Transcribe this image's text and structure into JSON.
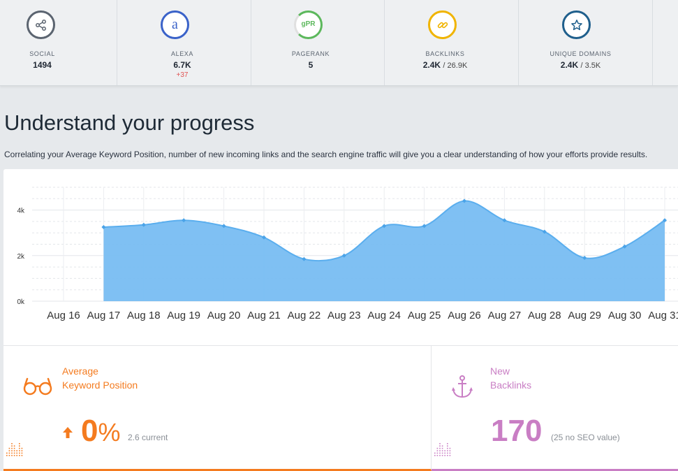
{
  "metrics": [
    {
      "label": "SOCIAL",
      "value": "1494",
      "icon": "share-icon",
      "color": "#5b6470"
    },
    {
      "label": "ALEXA",
      "value": "6.7K",
      "delta": "+37",
      "icon": "alexa-icon",
      "color": "#3a62c9"
    },
    {
      "label": "PAGERANK",
      "value": "5",
      "icon": "pagerank-icon",
      "color": "#5cb85c",
      "badge": "gPR"
    },
    {
      "label": "BACKLINKS",
      "value": "2.4K",
      "sub": "/ 26.9K",
      "icon": "link-icon",
      "color": "#f0b400"
    },
    {
      "label": "UNIQUE DOMAINS",
      "value": "2.4K",
      "sub": "/ 3.5K",
      "icon": "star-icon",
      "color": "#1f5f8c"
    }
  ],
  "alexa_letter": "a",
  "section": {
    "title": "Understand your progress",
    "description": "Correlating your Average Keyword Position, number of new incoming links and the search engine traffic will give you a clear understanding of how your efforts provide results."
  },
  "chart_data": {
    "type": "area",
    "x": [
      "Aug 16",
      "Aug 17",
      "Aug 18",
      "Aug 19",
      "Aug 20",
      "Aug 21",
      "Aug 22",
      "Aug 23",
      "Aug 24",
      "Aug 25",
      "Aug 26",
      "Aug 27",
      "Aug 28",
      "Aug 29",
      "Aug 30",
      "Aug 31"
    ],
    "values": [
      null,
      3250,
      3350,
      3550,
      3300,
      2800,
      1850,
      2000,
      3300,
      3300,
      4400,
      3550,
      3050,
      1900,
      2400,
      3550
    ],
    "yticks": [
      "0k",
      "2k",
      "4k"
    ],
    "ylim": [
      0,
      5000
    ],
    "grid": true,
    "color": "#78bdf2",
    "line_color": "#5aaeee"
  },
  "stats": {
    "keyword": {
      "label_line1": "Average",
      "label_line2": "Keyword Position",
      "value": "0",
      "unit": "%",
      "note": "2.6 current",
      "color": "#f47b1f",
      "icon": "glasses-icon"
    },
    "backlinks": {
      "label_line1": "New",
      "label_line2": "Backlinks",
      "value": "170",
      "note": "(25 no SEO value)",
      "color": "#c97ec4",
      "icon": "anchor-icon"
    }
  }
}
